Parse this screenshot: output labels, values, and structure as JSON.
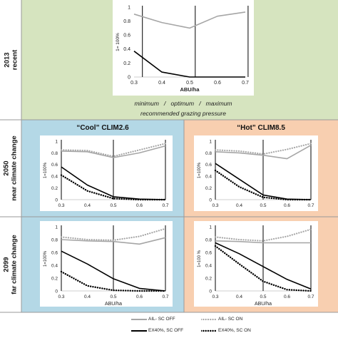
{
  "rows": [
    {
      "year": "2013",
      "label": "recent"
    },
    {
      "year": "2050",
      "label": "near climate change"
    },
    {
      "year": "2099",
      "label": "far climate change"
    }
  ],
  "panel_titles": {
    "cool": "“Cool” CLIM2.6",
    "hot": "“Hot” CLIM8.5"
  },
  "caption": {
    "line1": [
      "minimum",
      "/",
      "optimum",
      "/",
      "maximum"
    ],
    "line2": "recommended grazing pressure"
  },
  "colors": {
    "green_bg": "#d6e4bf",
    "blue_bg": "#b4d8e6",
    "orange_bg": "#f8cfb0",
    "grey_line": "#a6a6a6",
    "black_line": "#000000"
  },
  "legend": [
    {
      "label": "AIL- SC OFF",
      "style": "grey-solid"
    },
    {
      "label": "AIL- SC ON",
      "style": "grey-dotted"
    },
    {
      "label": "EX40%, SC OFF",
      "style": "black-solid"
    },
    {
      "label": "EX40%, SC ON",
      "style": "black-dotted"
    }
  ],
  "chart_data": [
    {
      "id": "recent",
      "type": "line",
      "x": [
        0.3,
        0.4,
        0.5,
        0.6,
        0.7
      ],
      "xticks": [
        "0.3",
        "0.4",
        "0.5",
        "0.6",
        "0.7"
      ],
      "yticks": [
        "0",
        "0.2",
        "0.4",
        "0.6",
        "0.8",
        "1"
      ],
      "xlim": [
        0.3,
        0.7
      ],
      "ylim": [
        0,
        1
      ],
      "xlabel": "ABU/ha",
      "ylabel": "1= 100%",
      "vlines": [
        0.33,
        0.52,
        0.71
      ],
      "series": [
        {
          "style": "grey-solid",
          "values": [
            0.9,
            0.78,
            0.7,
            0.87,
            0.93
          ]
        },
        {
          "style": "black-solid",
          "values": [
            0.37,
            0.07,
            0.0,
            0.0,
            0.0
          ]
        }
      ]
    },
    {
      "id": "2050-cool",
      "type": "line",
      "x": [
        0.3,
        0.4,
        0.5,
        0.6,
        0.7
      ],
      "xticks": [
        "0.3",
        "0.4",
        "0.5",
        "0.6",
        "0.7"
      ],
      "yticks": [
        "0",
        "0.2",
        "0.4",
        "0.6",
        "0.8",
        "1"
      ],
      "xlim": [
        0.3,
        0.7
      ],
      "ylim": [
        0,
        1
      ],
      "xlabel": "",
      "ylabel": "1=100%",
      "vlines": [
        0.3,
        0.5,
        0.7
      ],
      "series": [
        {
          "style": "grey-solid",
          "values": [
            0.83,
            0.82,
            0.72,
            0.8,
            0.92
          ]
        },
        {
          "style": "grey-dotted",
          "values": [
            0.85,
            0.84,
            0.74,
            0.85,
            0.96
          ]
        },
        {
          "style": "black-solid",
          "values": [
            0.56,
            0.25,
            0.05,
            0.01,
            0.0
          ]
        },
        {
          "style": "black-dotted",
          "values": [
            0.42,
            0.15,
            0.02,
            0.0,
            0.0
          ]
        }
      ]
    },
    {
      "id": "2050-hot",
      "type": "line",
      "x": [
        0.3,
        0.4,
        0.5,
        0.6,
        0.7
      ],
      "xticks": [
        "0.3",
        "0.4",
        "0.5",
        "0.6",
        "0.7"
      ],
      "yticks": [
        "0",
        "0.2",
        "0.4",
        "0.6",
        "0.8",
        "1"
      ],
      "xlim": [
        0.3,
        0.7
      ],
      "ylim": [
        0,
        1
      ],
      "xlabel": "",
      "ylabel": "1=100%",
      "vlines": [
        0.3,
        0.5,
        0.7
      ],
      "series": [
        {
          "style": "grey-solid",
          "values": [
            0.82,
            0.8,
            0.76,
            0.7,
            0.93
          ]
        },
        {
          "style": "grey-dotted",
          "values": [
            0.85,
            0.83,
            0.78,
            0.86,
            0.96
          ]
        },
        {
          "style": "black-solid",
          "values": [
            0.62,
            0.35,
            0.08,
            0.01,
            0.0
          ]
        },
        {
          "style": "black-dotted",
          "values": [
            0.5,
            0.22,
            0.04,
            0.0,
            0.0
          ]
        }
      ]
    },
    {
      "id": "2099-cool",
      "type": "line",
      "x": [
        0.3,
        0.4,
        0.5,
        0.6,
        0.7
      ],
      "xticks": [
        "0.3",
        "0.4",
        "0.5",
        "0.6",
        "0.7"
      ],
      "yticks": [
        "0",
        "0.2",
        "0.4",
        "0.6",
        "0.8",
        "1"
      ],
      "xlim": [
        0.3,
        0.7
      ],
      "ylim": [
        0,
        1
      ],
      "xlabel": "ABU/ha",
      "ylabel": "1=100%",
      "vlines": [
        0.3,
        0.5,
        0.7
      ],
      "series": [
        {
          "style": "grey-solid",
          "values": [
            0.8,
            0.78,
            0.77,
            0.73,
            0.83
          ]
        },
        {
          "style": "grey-dotted",
          "values": [
            0.84,
            0.8,
            0.79,
            0.85,
            0.97
          ]
        },
        {
          "style": "black-solid",
          "values": [
            0.62,
            0.42,
            0.19,
            0.04,
            0.0
          ]
        },
        {
          "style": "black-dotted",
          "values": [
            0.3,
            0.08,
            0.01,
            0.0,
            0.0
          ]
        }
      ]
    },
    {
      "id": "2099-hot",
      "type": "line",
      "x": [
        0.3,
        0.4,
        0.5,
        0.6,
        0.7
      ],
      "xticks": [
        "0.3",
        "0.4",
        "0.5",
        "0.6",
        "0.7"
      ],
      "yticks": [
        "0",
        "0.2",
        "0.4",
        "0.6",
        "0.8",
        "1"
      ],
      "xlim": [
        0.3,
        0.7
      ],
      "ylim": [
        0,
        1
      ],
      "xlabel": "ABU/ha",
      "ylabel": "1=100 %",
      "vlines": [
        0.3,
        0.5,
        0.7
      ],
      "series": [
        {
          "style": "grey-solid",
          "values": [
            0.78,
            0.77,
            0.75,
            0.75,
            0.75
          ]
        },
        {
          "style": "grey-dotted",
          "values": [
            0.84,
            0.8,
            0.78,
            0.85,
            0.96
          ]
        },
        {
          "style": "black-solid",
          "values": [
            0.75,
            0.58,
            0.38,
            0.18,
            0.03
          ]
        },
        {
          "style": "black-dotted",
          "values": [
            0.7,
            0.42,
            0.15,
            0.02,
            0.0
          ]
        }
      ]
    }
  ]
}
